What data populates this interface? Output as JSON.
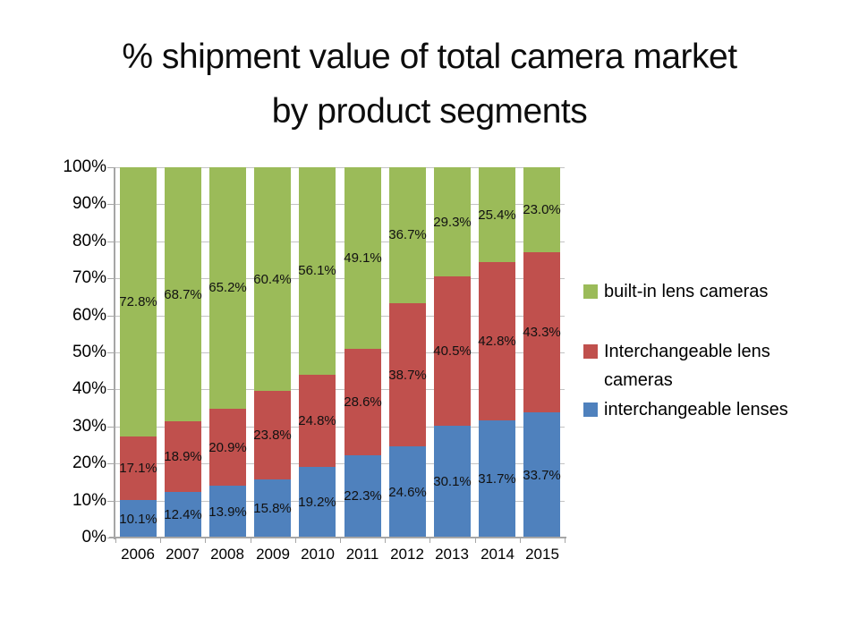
{
  "chart_data": {
    "type": "bar",
    "subtype": "stacked-100-percent",
    "title": "% shipment value of total camera market by product segments",
    "title_lines": [
      "% shipment value of total camera market",
      "by product segments"
    ],
    "categories": [
      "2006",
      "2007",
      "2008",
      "2009",
      "2010",
      "2011",
      "2012",
      "2013",
      "2014",
      "2015"
    ],
    "series": [
      {
        "name": "interchangeable lenses",
        "color": "#4F81BD",
        "values": [
          10.1,
          12.4,
          13.9,
          15.8,
          19.2,
          22.3,
          24.6,
          30.1,
          31.7,
          33.7
        ]
      },
      {
        "name": "Interchangeable lens cameras",
        "color": "#C0504D",
        "values": [
          17.1,
          18.9,
          20.9,
          23.8,
          24.8,
          28.6,
          38.7,
          40.5,
          42.8,
          43.3
        ]
      },
      {
        "name": "built-in lens cameras",
        "color": "#9BBB59",
        "values": [
          72.8,
          68.7,
          65.2,
          60.4,
          56.1,
          49.1,
          36.7,
          29.3,
          25.4,
          23.0
        ]
      }
    ],
    "data_labels": {
      "visible": true,
      "format": "0.0%",
      "suffix": "%"
    },
    "y_axis": {
      "min": 0,
      "max": 100,
      "step": 10,
      "tick_labels": [
        "0%",
        "10%",
        "20%",
        "30%",
        "40%",
        "50%",
        "60%",
        "70%",
        "80%",
        "90%",
        "100%"
      ]
    },
    "grid": true,
    "legend": {
      "position": "right",
      "items": [
        {
          "label": "built-in lens cameras",
          "color": "#9BBB59"
        },
        {
          "label": "Interchangeable lens cameras",
          "color": "#C0504D"
        },
        {
          "label": "interchangeable lenses",
          "color": "#4F81BD"
        }
      ]
    },
    "colors": {
      "axis": "#A6A6A6",
      "gridline": "#C3C3C3",
      "background": "#FFFFFF",
      "text": "#000000"
    }
  }
}
